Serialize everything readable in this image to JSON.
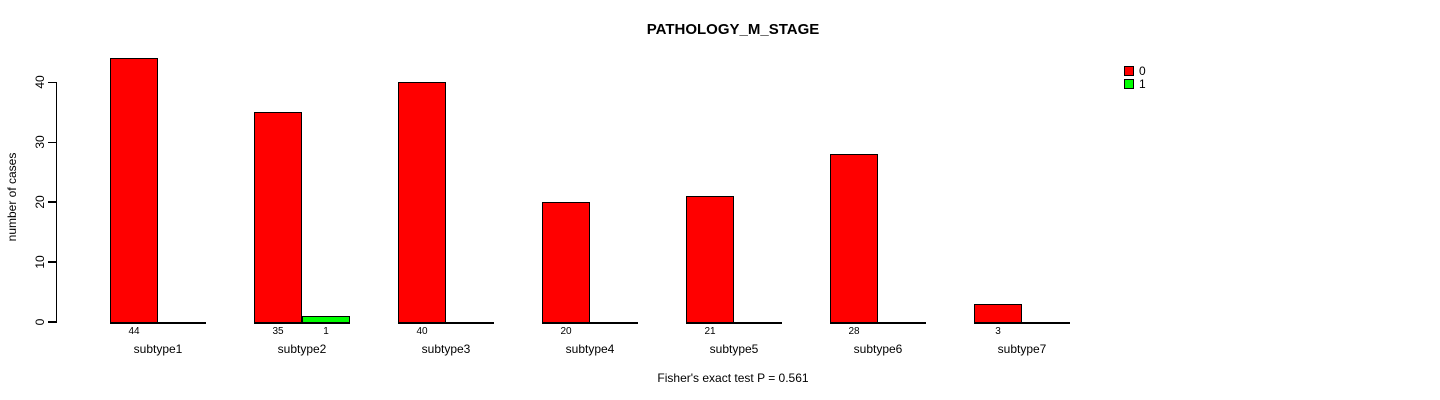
{
  "title": "PATHOLOGY_M_STAGE",
  "footer": "Fisher's exact test P = 0.561",
  "colors": {
    "series0": "#FF0000",
    "series1": "#00FF00",
    "axis": "#000000",
    "background": "#FFFFFF"
  },
  "legend": {
    "position": "topright",
    "items": [
      {
        "label": "0",
        "color": "#FF0000"
      },
      {
        "label": "1",
        "color": "#00FF00"
      }
    ]
  },
  "chart_data": {
    "type": "bar",
    "title": "PATHOLOGY_M_STAGE",
    "categories": [
      "subtype1",
      "subtype2",
      "subtype3",
      "subtype4",
      "subtype5",
      "subtype6",
      "subtype7"
    ],
    "series": [
      {
        "name": "0",
        "color": "#FF0000",
        "values": [
          44,
          35,
          40,
          20,
          21,
          28,
          3
        ]
      },
      {
        "name": "1",
        "color": "#00FF00",
        "values": [
          0,
          1,
          0,
          0,
          0,
          0,
          0
        ]
      }
    ],
    "bar_value_labels": [
      [
        "44",
        "35",
        "40",
        "20",
        "21",
        "28",
        "3"
      ],
      [
        "",
        "1",
        "",
        "",
        "",
        "",
        ""
      ]
    ],
    "xlabel": "",
    "ylabel": "number of cases",
    "yticks": [
      0,
      10,
      20,
      30,
      40
    ],
    "ylim": [
      0,
      44
    ],
    "grid": false,
    "legend_position": "topright",
    "annotation": "Fisher's exact test P = 0.561"
  }
}
